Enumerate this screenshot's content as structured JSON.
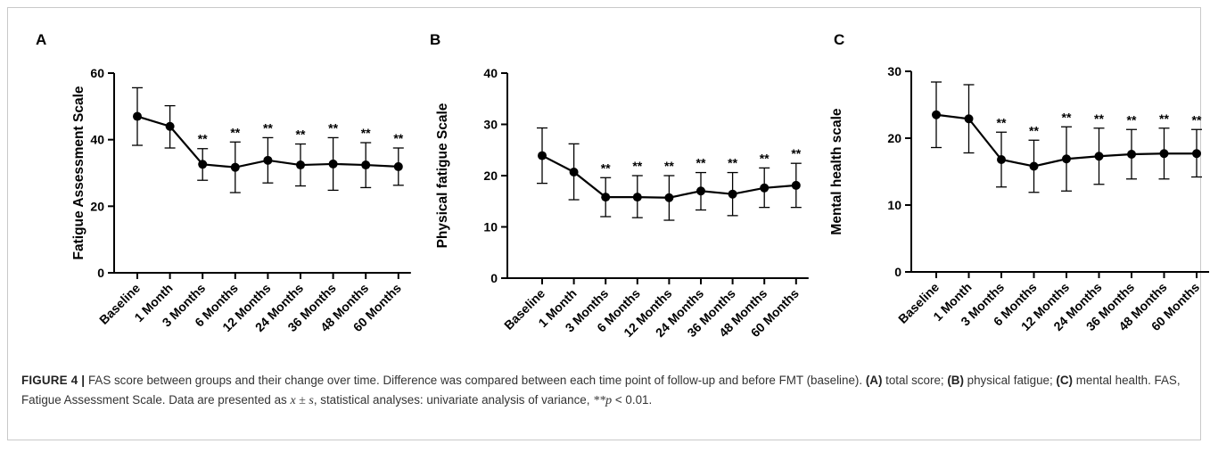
{
  "chart_data": [
    {
      "type": "line",
      "panel": "A",
      "ylabel": "Fatigue Assessment Scale",
      "xlabel": "",
      "ylim": [
        0,
        60
      ],
      "yticks": [
        0,
        20,
        40,
        60
      ],
      "categories": [
        "Baseline",
        "1 Month",
        "3 Months",
        "6 Months",
        "12 Months",
        "24 Months",
        "36 Months",
        "48 Months",
        "60 Months"
      ],
      "series": [
        {
          "values": [
            47,
            44,
            32.6,
            31.7,
            33.8,
            32.4,
            32.7,
            32.4,
            31.9
          ],
          "error_upper": [
            55.6,
            50.2,
            37.3,
            39.3,
            40.6,
            38.7,
            40.6,
            39.1,
            37.5
          ],
          "error_lower": [
            38.3,
            37.5,
            27.8,
            24.1,
            27,
            26.1,
            24.8,
            25.6,
            26.3
          ]
        }
      ],
      "annotations": [
        "",
        "",
        "**",
        "**",
        "**",
        "**",
        "**",
        "**",
        "**"
      ]
    },
    {
      "type": "line",
      "panel": "B",
      "ylabel": "Physical fatigue Scale",
      "xlabel": "",
      "ylim": [
        0,
        40
      ],
      "yticks": [
        0,
        10,
        20,
        30,
        40
      ],
      "categories": [
        "Baseline",
        "1 Month",
        "3 Months",
        "6 Months",
        "12 Months",
        "24 Months",
        "36 Months",
        "48 Months",
        "60 Months"
      ],
      "series": [
        {
          "values": [
            23.9,
            20.7,
            15.8,
            15.8,
            15.7,
            17,
            16.4,
            17.6,
            18.1
          ],
          "error_upper": [
            29.3,
            26.2,
            19.6,
            20,
            20,
            20.6,
            20.6,
            21.5,
            22.4
          ],
          "error_lower": [
            18.5,
            15.3,
            12,
            11.8,
            11.3,
            13.3,
            12.2,
            13.8,
            13.8
          ]
        }
      ],
      "annotations": [
        "",
        "",
        "**",
        "**",
        "**",
        "**",
        "**",
        "**",
        "**"
      ]
    },
    {
      "type": "line",
      "panel": "C",
      "ylabel": "Mental health scale",
      "xlabel": "",
      "ylim": [
        0,
        30
      ],
      "yticks": [
        0,
        10,
        20,
        30
      ],
      "categories": [
        "Baseline",
        "1 Month",
        "3 Months",
        "6 Months",
        "12 Months",
        "24 Months",
        "36 Months",
        "48 Months",
        "60 Months"
      ],
      "series": [
        {
          "values": [
            23.5,
            22.9,
            16.8,
            15.8,
            16.9,
            17.3,
            17.6,
            17.7,
            17.7
          ],
          "error_upper": [
            28.4,
            28,
            20.9,
            19.7,
            21.7,
            21.5,
            21.3,
            21.5,
            21.3
          ],
          "error_lower": [
            18.6,
            17.8,
            12.7,
            11.9,
            12.1,
            13.1,
            13.9,
            13.9,
            14.2
          ]
        }
      ],
      "annotations": [
        "",
        "",
        "**",
        "**",
        "**",
        "**",
        "**",
        "**",
        "**"
      ]
    }
  ],
  "caption": {
    "label": "FIGURE 4 |",
    "text_1": " FAS score between groups and their change over time. Difference was compared between each time point of follow-up and before FMT (baseline). ",
    "ref_a": "(A)",
    "text_2": " total score; ",
    "ref_b": "(B)",
    "text_3": " physical fatigue; ",
    "ref_c": "(C)",
    "text_4": " mental health. FAS, Fatigue Assessment Scale. Data are presented as ",
    "math_1": "x ± s",
    "text_5": ", statistical analyses: univariate analysis of variance, ",
    "math_2": "**p",
    "text_6": " < 0.01."
  },
  "colors": {
    "line": "#000000",
    "frame": "#c9c9c9",
    "caption_text": "#333333"
  }
}
